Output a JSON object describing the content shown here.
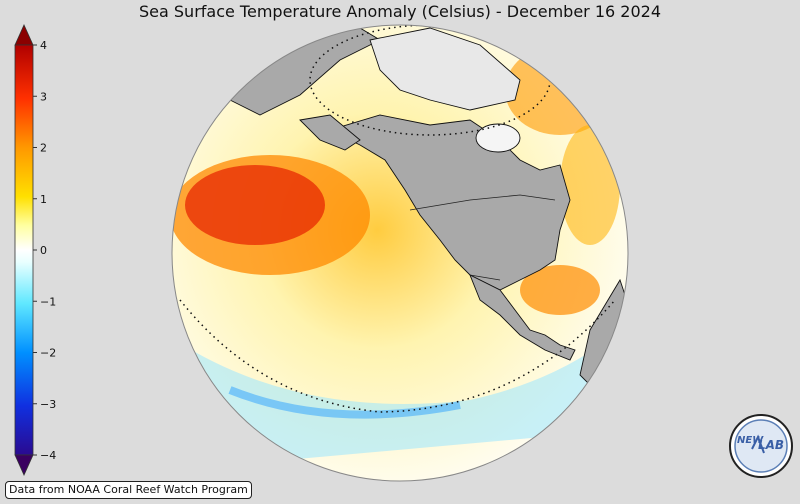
{
  "title": "Sea Surface Temperature Anomaly (Celsius) - December 16 2024",
  "colorbar": {
    "ticks": [
      "4",
      "3",
      "2",
      "1",
      "0",
      "−1",
      "−2",
      "−3",
      "−4"
    ],
    "colors": [
      "#0d0060",
      "#1c2cc8",
      "#0080ff",
      "#40d8ff",
      "#c0ffff",
      "#ffffff",
      "#ffffa0",
      "#ffe000",
      "#ffa000",
      "#ff5000",
      "#e00000",
      "#8b0000"
    ]
  },
  "map": {
    "land_color": "#a9a9a9",
    "ocean_warm_color": "#ff6a00",
    "ocean_cool_color": "#40c8ff"
  },
  "credit": "Data from NOAA Coral Reef Watch Program",
  "logo": {
    "text_left": "NEW",
    "text_right": "LAB"
  }
}
